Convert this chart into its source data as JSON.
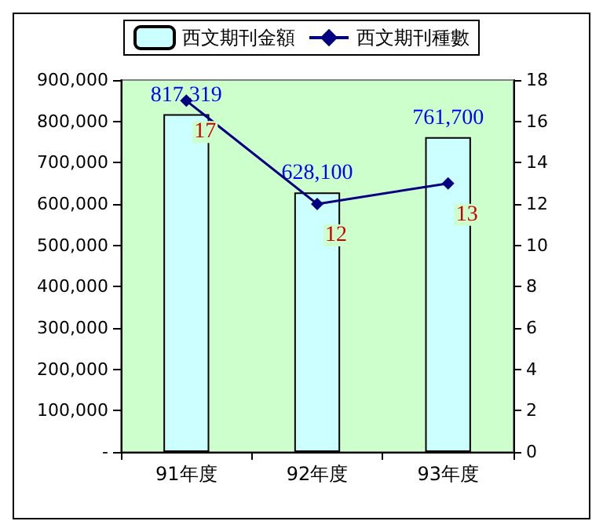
{
  "chart_data": {
    "type": "bar",
    "categories": [
      "91年度",
      "92年度",
      "93年度"
    ],
    "series": [
      {
        "name": "西文期刊金額",
        "color": "#ccffff",
        "values": [
          817319,
          628100,
          761700
        ],
        "value_labels": [
          "817,319",
          "628,100",
          "761,700"
        ]
      },
      {
        "name": "西文期刊種數",
        "type": "line",
        "axis": "y2",
        "color": "#000080",
        "values": [
          17,
          12,
          13
        ],
        "value_labels": [
          "17",
          "12",
          "13"
        ]
      }
    ],
    "ylim": [
      0,
      900000
    ],
    "yticks": [
      {
        "value": 0,
        "label": "-"
      },
      {
        "value": 100000,
        "label": "100,000"
      },
      {
        "value": 200000,
        "label": "200,000"
      },
      {
        "value": 300000,
        "label": "300,000"
      },
      {
        "value": 400000,
        "label": "400,000"
      },
      {
        "value": 500000,
        "label": "500,000"
      },
      {
        "value": 600000,
        "label": "600,000"
      },
      {
        "value": 700000,
        "label": "700,000"
      },
      {
        "value": 800000,
        "label": "800,000"
      },
      {
        "value": 900000,
        "label": "900,000"
      }
    ],
    "y2lim": [
      0,
      18
    ],
    "y2ticks": [
      0,
      2,
      4,
      6,
      8,
      10,
      12,
      14,
      16,
      18
    ],
    "legend": "top",
    "marker": "diamond",
    "line_style": "solid"
  }
}
